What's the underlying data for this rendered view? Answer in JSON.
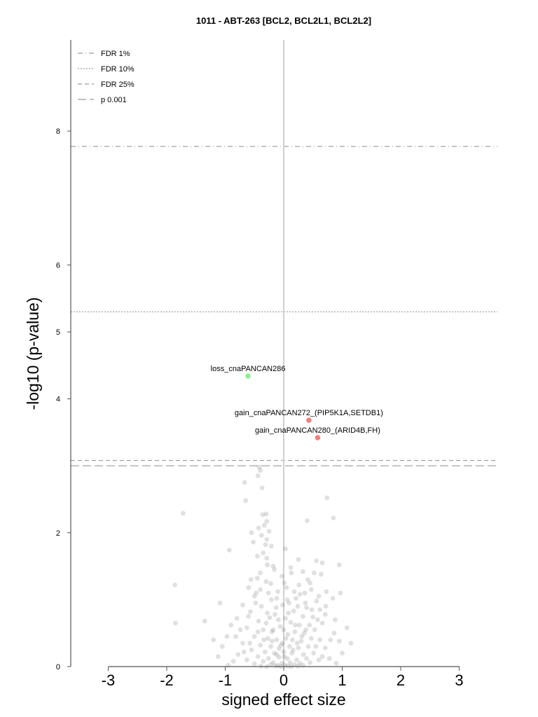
{
  "chart_data": {
    "type": "scatter",
    "title": "1011 - ABT-263 [BCL2, BCL2L1, BCL2L2]",
    "xlabel": "signed effect size",
    "ylabel": "-log10 (p-value)",
    "xlim": [
      -3.6,
      3.6
    ],
    "ylim": [
      0,
      9.3
    ],
    "xticks": [
      -3,
      -2,
      -1,
      0,
      1,
      2,
      3
    ],
    "yticks": [
      0,
      2,
      4,
      5,
      6,
      8
    ],
    "legend_position": "top-left",
    "legend": [
      {
        "label": "FDR 1%",
        "style": "dash-dot"
      },
      {
        "label": "FDR 10%",
        "style": "dotted"
      },
      {
        "label": "FDR 25%",
        "style": "dashed"
      },
      {
        "label": "p 0.001",
        "style": "long-dash"
      }
    ],
    "thresholds": [
      {
        "name": "FDR 1%",
        "y": 7.77,
        "style": "dash-dot"
      },
      {
        "name": "FDR 10%",
        "y": 5.3,
        "style": "dotted"
      },
      {
        "name": "FDR 25%",
        "y": 3.08,
        "style": "dashed"
      },
      {
        "name": "p 0.001",
        "y": 3.0,
        "style": "long-dash"
      }
    ],
    "highlighted": [
      {
        "label": "loss_cnaPANCAN286",
        "x": -0.61,
        "y": 4.34,
        "color": "#90ee90"
      },
      {
        "label": "gain_cnaPANCAN272_(PIP5K1A,SETDB1)",
        "x": 0.43,
        "y": 3.68,
        "color": "#f08080"
      },
      {
        "label": "gain_cnaPANCAN280_(ARID4B,FH)",
        "x": 0.58,
        "y": 3.42,
        "color": "#f08080"
      }
    ],
    "background_points": [
      [
        -0.42,
        2.98
      ],
      [
        -0.4,
        2.93
      ],
      [
        -0.44,
        2.85
      ],
      [
        -0.67,
        2.75
      ],
      [
        -0.37,
        2.67
      ],
      [
        -0.65,
        2.48
      ],
      [
        0.74,
        2.52
      ],
      [
        -1.72,
        2.29
      ],
      [
        0.85,
        2.22
      ],
      [
        0.4,
        2.18
      ],
      [
        -0.3,
        2.28
      ],
      [
        -0.36,
        2.27
      ],
      [
        -0.29,
        2.17
      ],
      [
        -0.33,
        2.11
      ],
      [
        -0.43,
        2.07
      ],
      [
        -0.25,
        2.02
      ],
      [
        -0.55,
        2.0
      ],
      [
        -0.38,
        1.96
      ],
      [
        -0.29,
        1.9
      ],
      [
        -0.52,
        1.86
      ],
      [
        -0.31,
        1.82
      ],
      [
        -0.21,
        1.8
      ],
      [
        0.03,
        1.76
      ],
      [
        -0.93,
        1.74
      ],
      [
        -0.35,
        1.7
      ],
      [
        -0.45,
        1.65
      ],
      [
        -0.29,
        1.62
      ],
      [
        0.25,
        1.6
      ],
      [
        0.56,
        1.58
      ],
      [
        -0.28,
        1.52
      ],
      [
        -0.18,
        1.5
      ],
      [
        0.12,
        1.48
      ],
      [
        0.66,
        1.55
      ],
      [
        0.95,
        1.52
      ],
      [
        0.33,
        1.42
      ],
      [
        0.52,
        1.4
      ],
      [
        0.64,
        1.38
      ],
      [
        -0.45,
        1.32
      ],
      [
        -0.56,
        1.3
      ],
      [
        -0.3,
        1.27
      ],
      [
        -0.22,
        1.24
      ],
      [
        0.01,
        1.25
      ],
      [
        0.26,
        1.22
      ],
      [
        0.41,
        1.3
      ],
      [
        -1.86,
        1.22
      ],
      [
        -0.6,
        1.18
      ],
      [
        -0.4,
        1.15
      ],
      [
        -0.1,
        1.12
      ],
      [
        0.18,
        1.12
      ],
      [
        0.36,
        1.1
      ],
      [
        0.47,
        1.15
      ],
      [
        0.73,
        1.12
      ],
      [
        0.97,
        1.1
      ],
      [
        -0.5,
        1.05
      ],
      [
        -0.21,
        1.0
      ],
      [
        -0.12,
        1.02
      ],
      [
        0.06,
        1.0
      ],
      [
        0.21,
        1.02
      ],
      [
        0.56,
        0.98
      ],
      [
        0.84,
        1.02
      ],
      [
        -1.09,
        0.95
      ],
      [
        -0.7,
        0.92
      ],
      [
        -0.38,
        0.9
      ],
      [
        -0.02,
        0.92
      ],
      [
        0.24,
        0.9
      ],
      [
        0.39,
        0.88
      ],
      [
        0.62,
        0.85
      ],
      [
        -0.57,
        0.82
      ],
      [
        -0.28,
        0.8
      ],
      [
        -0.15,
        0.78
      ],
      [
        0.08,
        0.8
      ],
      [
        0.33,
        0.75
      ],
      [
        0.5,
        0.74
      ],
      [
        0.71,
        0.78
      ],
      [
        -0.8,
        0.72
      ],
      [
        -0.43,
        0.68
      ],
      [
        -0.3,
        0.65
      ],
      [
        -0.09,
        0.7
      ],
      [
        0.12,
        0.66
      ],
      [
        0.27,
        0.62
      ],
      [
        0.44,
        0.62
      ],
      [
        0.66,
        0.65
      ],
      [
        -1.35,
        0.68
      ],
      [
        -1.85,
        0.65
      ],
      [
        -0.63,
        0.58
      ],
      [
        -0.35,
        0.55
      ],
      [
        -0.2,
        0.52
      ],
      [
        0.0,
        0.55
      ],
      [
        0.19,
        0.52
      ],
      [
        0.35,
        0.5
      ],
      [
        0.53,
        0.55
      ],
      [
        0.86,
        0.5
      ],
      [
        1.08,
        0.58
      ],
      [
        -0.97,
        0.45
      ],
      [
        -0.5,
        0.45
      ],
      [
        -0.27,
        0.42
      ],
      [
        -0.12,
        0.4
      ],
      [
        0.04,
        0.42
      ],
      [
        0.15,
        0.4
      ],
      [
        0.3,
        0.38
      ],
      [
        0.47,
        0.42
      ],
      [
        0.62,
        0.4
      ],
      [
        -0.7,
        0.35
      ],
      [
        -0.4,
        0.32
      ],
      [
        -0.22,
        0.3
      ],
      [
        -0.05,
        0.32
      ],
      [
        0.1,
        0.3
      ],
      [
        0.25,
        0.28
      ],
      [
        0.42,
        0.3
      ],
      [
        0.71,
        0.28
      ],
      [
        -0.55,
        0.25
      ],
      [
        -0.32,
        0.22
      ],
      [
        -0.16,
        0.2
      ],
      [
        0.0,
        0.22
      ],
      [
        0.14,
        0.2
      ],
      [
        0.34,
        0.18
      ],
      [
        0.51,
        0.2
      ],
      [
        -0.78,
        0.18
      ],
      [
        -0.44,
        0.15
      ],
      [
        -0.26,
        0.12
      ],
      [
        -0.08,
        0.14
      ],
      [
        0.06,
        0.12
      ],
      [
        0.22,
        0.1
      ],
      [
        0.39,
        0.12
      ],
      [
        0.6,
        0.1
      ],
      [
        -0.63,
        0.1
      ],
      [
        -0.35,
        0.08
      ],
      [
        -0.18,
        0.06
      ],
      [
        -0.03,
        0.05
      ],
      [
        0.11,
        0.06
      ],
      [
        0.28,
        0.05
      ],
      [
        0.45,
        0.06
      ],
      [
        -0.5,
        0.04
      ],
      [
        -0.22,
        0.03
      ],
      [
        -0.1,
        0.02
      ],
      [
        0.02,
        0.02
      ],
      [
        0.18,
        0.03
      ],
      [
        0.33,
        0.02
      ],
      [
        -0.39,
        0.01
      ],
      [
        -0.14,
        0.01
      ],
      [
        0.07,
        0.01
      ],
      [
        0.24,
        0.01
      ],
      [
        -0.29,
        0.0
      ],
      [
        -0.05,
        0.0
      ],
      [
        0.13,
        0.0
      ],
      [
        -0.02,
        0.35
      ],
      [
        -0.06,
        0.6
      ],
      [
        0.03,
        0.72
      ],
      [
        -0.13,
        0.88
      ],
      [
        0.09,
        0.95
      ],
      [
        -0.18,
        0.55
      ],
      [
        0.2,
        0.62
      ],
      [
        -0.24,
        0.73
      ],
      [
        0.17,
        0.83
      ],
      [
        -0.08,
        0.27
      ],
      [
        0.07,
        0.48
      ],
      [
        -0.34,
        0.4
      ],
      [
        0.31,
        0.45
      ],
      [
        -0.44,
        0.52
      ],
      [
        0.38,
        0.55
      ],
      [
        -0.12,
        0.18
      ],
      [
        0.16,
        0.25
      ],
      [
        -0.2,
        0.38
      ],
      [
        0.23,
        0.35
      ],
      [
        0.01,
        0.15
      ],
      [
        0.55,
        0.3
      ],
      [
        -0.58,
        0.35
      ],
      [
        0.66,
        0.15
      ],
      [
        -0.68,
        0.22
      ],
      [
        0.78,
        0.12
      ],
      [
        -0.86,
        0.08
      ],
      [
        0.9,
        0.05
      ],
      [
        -0.95,
        0.02
      ],
      [
        1.0,
        0.2
      ],
      [
        -1.05,
        0.3
      ],
      [
        0.48,
        0.85
      ],
      [
        -0.48,
        0.95
      ],
      [
        0.58,
        0.7
      ],
      [
        -0.6,
        0.75
      ],
      [
        0.28,
        1.08
      ],
      [
        -0.26,
        1.1
      ],
      [
        0.05,
        1.18
      ],
      [
        -0.03,
        1.35
      ],
      [
        0.13,
        1.4
      ],
      [
        -0.16,
        1.45
      ],
      [
        0.45,
        1.25
      ],
      [
        -0.4,
        1.4
      ],
      [
        0.37,
        0.95
      ],
      [
        -0.47,
        1.1
      ],
      [
        0.6,
        1.05
      ],
      [
        -0.74,
        0.55
      ],
      [
        0.8,
        0.4
      ],
      [
        -0.82,
        0.45
      ],
      [
        0.95,
        0.38
      ],
      [
        -1.12,
        0.15
      ],
      [
        0.88,
        0.7
      ],
      [
        -0.9,
        0.62
      ],
      [
        1.15,
        0.35
      ],
      [
        -1.2,
        0.4
      ],
      [
        0.72,
        0.9
      ]
    ]
  }
}
